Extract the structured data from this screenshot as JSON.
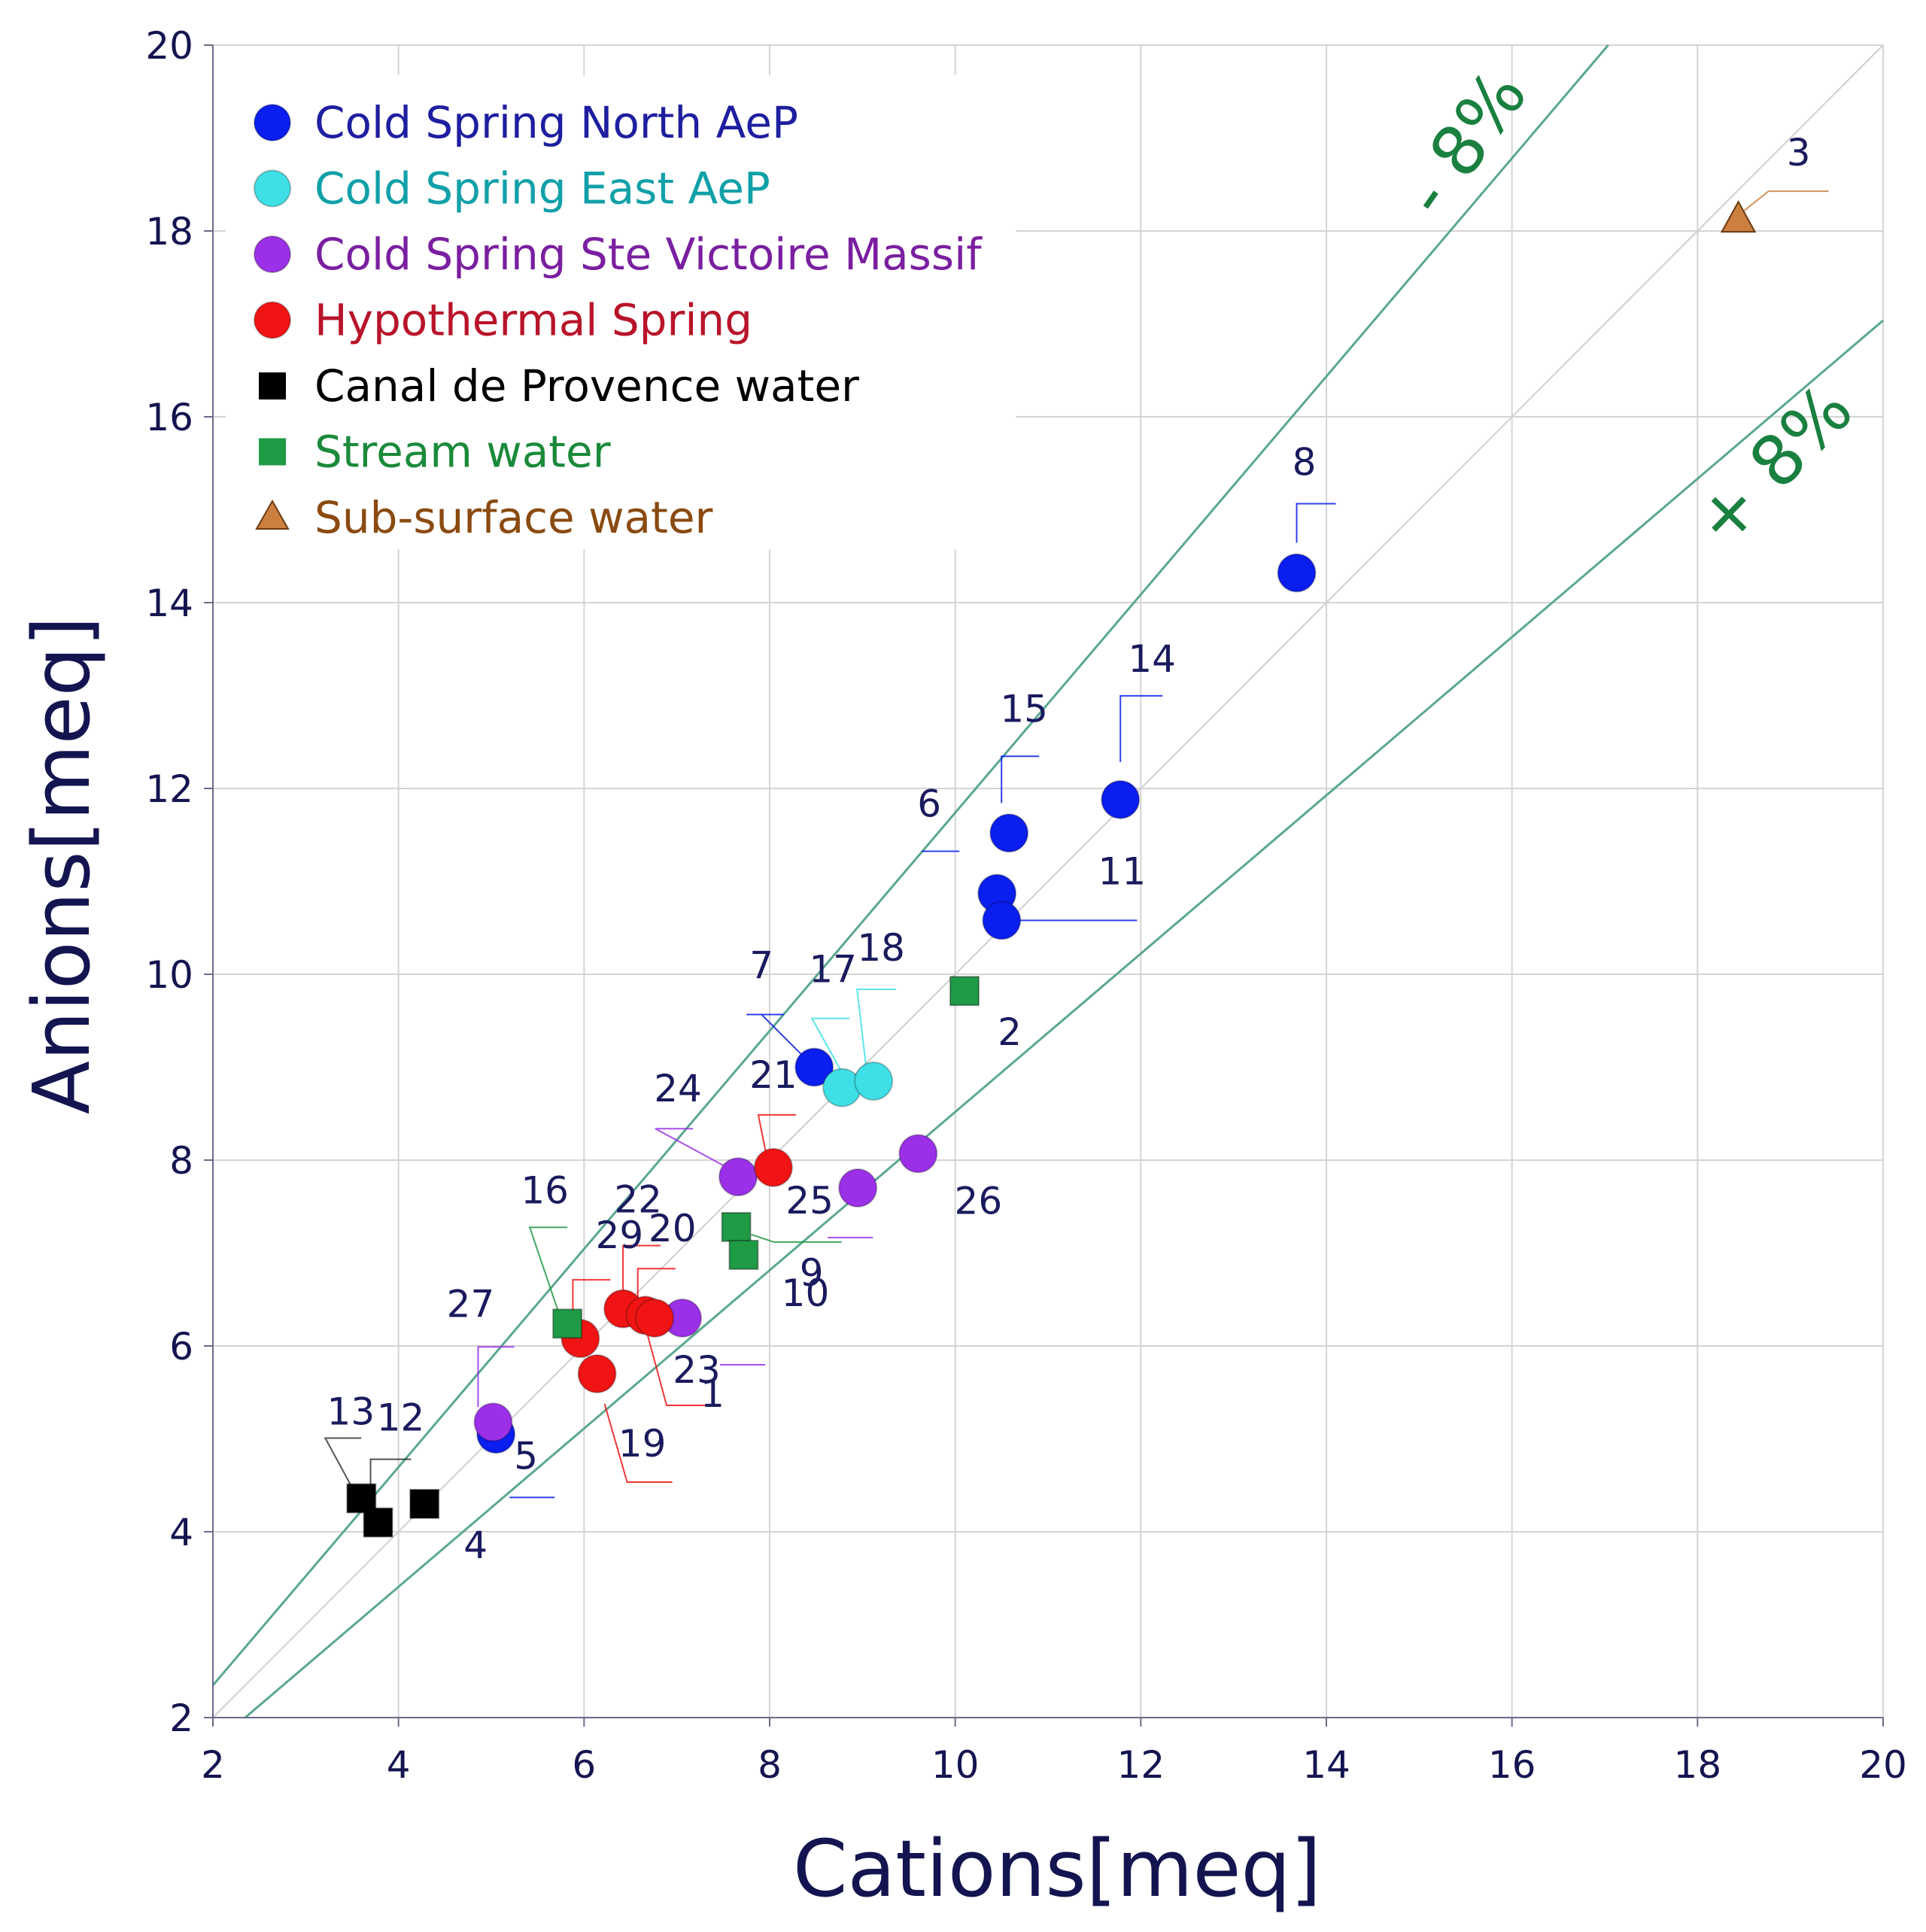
{
  "chart_data": {
    "type": "scatter",
    "title": "",
    "xlabel": "Cations[meq]",
    "ylabel": "Anions[meq]",
    "xlim": [
      2,
      20
    ],
    "ylim": [
      2,
      20
    ],
    "xticks": [
      "2",
      "4",
      "6",
      "8",
      "10",
      "12",
      "14",
      "16",
      "18",
      "20"
    ],
    "yticks": [
      "2",
      "4",
      "6",
      "8",
      "10",
      "12",
      "14",
      "16",
      "18",
      "20"
    ],
    "grid": true,
    "legend_position": "top-left",
    "reference_lines": [
      {
        "label": "- 8%",
        "slope": 1.17391
      },
      {
        "label": "",
        "slope": 1.0
      },
      {
        "label": "+ 8%",
        "slope": 0.85185
      }
    ],
    "series": [
      {
        "name": "Cold Spring North AeP",
        "marker": "circle",
        "color": "#0a1ef0",
        "points": [
          {
            "label": "8",
            "x": 13.68,
            "y": 14.32
          },
          {
            "label": "14",
            "x": 11.78,
            "y": 11.88
          },
          {
            "label": "15",
            "x": 10.58,
            "y": 11.52
          },
          {
            "label": "6",
            "x": 10.45,
            "y": 10.87
          },
          {
            "label": "11",
            "x": 10.5,
            "y": 10.58
          },
          {
            "label": "7",
            "x": 8.48,
            "y": 9.0
          },
          {
            "label": "5",
            "x": 5.05,
            "y": 5.05
          }
        ]
      },
      {
        "name": "Cold Spring East AeP",
        "marker": "circle",
        "color": "#3ee0e6",
        "points": [
          {
            "label": "17",
            "x": 8.78,
            "y": 8.78
          },
          {
            "label": "18",
            "x": 9.12,
            "y": 8.85
          }
        ]
      },
      {
        "name": "Cold Spring Ste Victoire Massif",
        "marker": "circle",
        "color": "#9b30e8",
        "points": [
          {
            "label": "24",
            "x": 7.66,
            "y": 7.82
          },
          {
            "label": "25",
            "x": 8.95,
            "y": 7.7
          },
          {
            "label": "26",
            "x": 9.6,
            "y": 8.07
          },
          {
            "label": "1",
            "x": 7.06,
            "y": 6.3
          },
          {
            "label": "27",
            "x": 5.02,
            "y": 5.18
          }
        ]
      },
      {
        "name": "Hypothermal Spring",
        "marker": "circle",
        "color": "#f01414",
        "points": [
          {
            "label": "21",
            "x": 8.04,
            "y": 7.92
          },
          {
            "label": "22",
            "x": 6.42,
            "y": 6.4
          },
          {
            "label": "20",
            "x": 6.66,
            "y": 6.33
          },
          {
            "label": "23",
            "x": 6.76,
            "y": 6.3
          },
          {
            "label": "29",
            "x": 5.96,
            "y": 6.08
          },
          {
            "label": "19",
            "x": 6.14,
            "y": 5.7
          }
        ]
      },
      {
        "name": "Canal de Provence water",
        "marker": "square",
        "color": "#000000",
        "points": [
          {
            "label": "13",
            "x": 3.6,
            "y": 4.36
          },
          {
            "label": "12",
            "x": 3.78,
            "y": 4.1
          },
          {
            "label": "4",
            "x": 4.28,
            "y": 4.3
          }
        ]
      },
      {
        "name": "Stream water",
        "marker": "square",
        "color": "#1f9a45",
        "points": [
          {
            "label": "2",
            "x": 10.1,
            "y": 9.82
          },
          {
            "label": "9",
            "x": 7.64,
            "y": 7.28
          },
          {
            "label": "10",
            "x": 7.72,
            "y": 6.98
          },
          {
            "label": "16",
            "x": 5.82,
            "y": 6.24
          }
        ]
      },
      {
        "name": "Sub-surface water",
        "marker": "triangle",
        "color": "#cc8040",
        "points": [
          {
            "label": "3",
            "x": 18.44,
            "y": 18.12
          }
        ]
      }
    ]
  },
  "legend_text_colors": [
    "#1e1ea0",
    "#10a0a8",
    "#7a1fa0",
    "#b8142a",
    "#000000",
    "#1a8a3a",
    "#8a4a10"
  ]
}
